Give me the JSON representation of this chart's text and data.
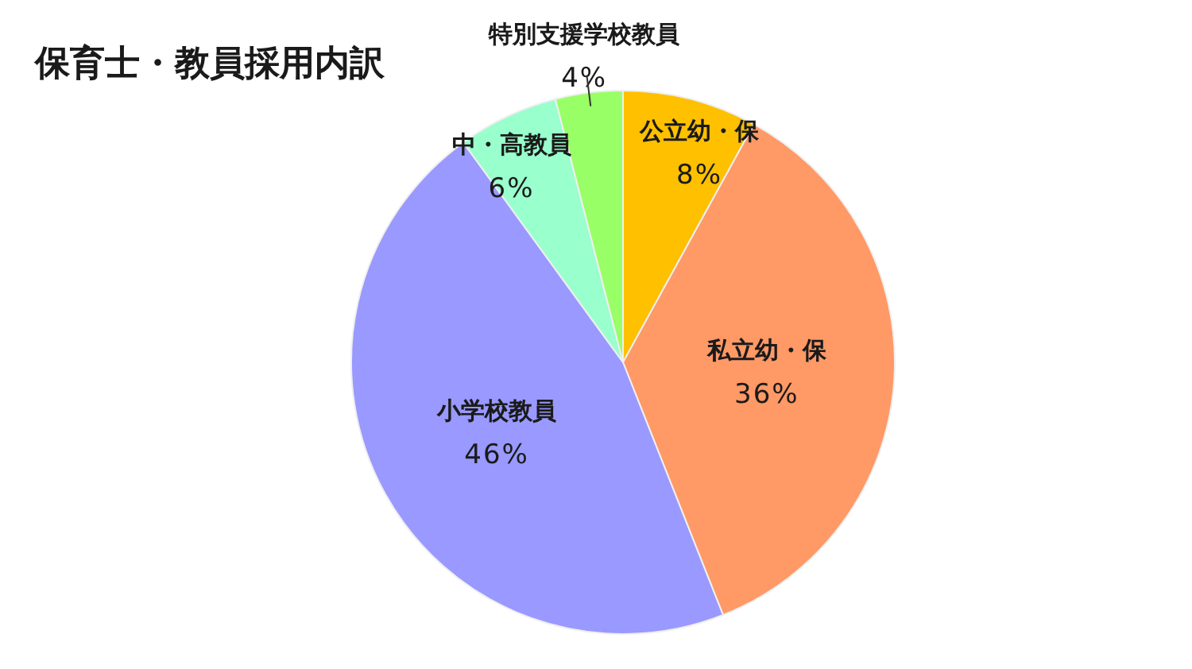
{
  "chart_data": {
    "type": "pie",
    "title": "保育士・教員採用内訳",
    "categories": [
      "公立幼・保",
      "私立幼・保",
      "小学校教員",
      "中・高教員",
      "特別支援学校教員"
    ],
    "values": [
      8,
      36,
      46,
      6,
      4
    ],
    "value_labels": [
      "8%",
      "36%",
      "46%",
      "6%",
      "4%"
    ],
    "colors": [
      "#ffc000",
      "#ff9966",
      "#9999ff",
      "#99ffcc",
      "#99ff66"
    ]
  }
}
